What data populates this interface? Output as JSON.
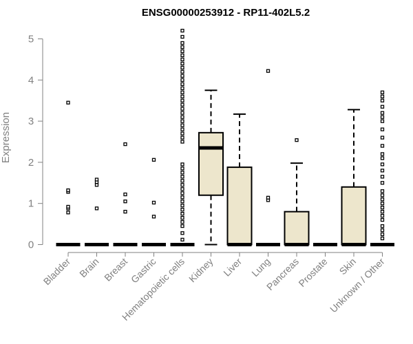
{
  "chart_data": {
    "type": "boxplot",
    "title": "ENSG00000253912 - RP11-402L5.2",
    "xlabel": "",
    "ylabel": "Expression",
    "ylim": [
      0,
      5.3
    ],
    "yticks": [
      0,
      1,
      2,
      3,
      4,
      5
    ],
    "grid": false,
    "box_fill": "#ede6cc",
    "categories": [
      "Bladder",
      "Brain",
      "Breast",
      "Gastric",
      "Hematopoietic cells",
      "Kidney",
      "Liver",
      "Lung",
      "Pancreas",
      "Prostate",
      "Skin",
      "Unknown / Other"
    ],
    "boxes": [
      {
        "q1": 0,
        "median": 0,
        "q3": 0,
        "whisker_low": 0,
        "whisker_high": 0,
        "outliers": [
          0.78,
          0.88,
          0.92,
          1.28,
          1.32,
          3.45
        ]
      },
      {
        "q1": 0,
        "median": 0,
        "q3": 0,
        "whisker_low": 0,
        "whisker_high": 0,
        "outliers": [
          0.88,
          1.45,
          1.52,
          1.58
        ]
      },
      {
        "q1": 0,
        "median": 0,
        "q3": 0,
        "whisker_low": 0,
        "whisker_high": 0,
        "outliers": [
          0.8,
          1.05,
          1.22,
          2.44
        ]
      },
      {
        "q1": 0,
        "median": 0,
        "q3": 0,
        "whisker_low": 0,
        "whisker_high": 0,
        "outliers": [
          0.68,
          1.02,
          2.06
        ]
      },
      {
        "q1": 0,
        "median": 0,
        "q3": 0,
        "whisker_low": 0,
        "whisker_high": 0,
        "outliers": [
          0.12,
          0.28,
          0.45,
          0.55,
          0.65,
          0.75,
          0.85,
          0.95,
          1.05,
          1.15,
          1.25,
          1.35,
          1.45,
          1.55,
          1.65,
          1.75,
          1.85,
          1.95,
          2.5,
          2.6,
          2.7,
          2.8,
          2.9,
          3.0,
          3.1,
          3.2,
          3.3,
          3.4,
          3.5,
          3.6,
          3.7,
          3.8,
          3.9,
          4.0,
          4.1,
          4.2,
          4.3,
          4.4,
          4.5,
          4.6,
          4.7,
          4.8,
          4.9,
          5.05,
          5.2
        ]
      },
      {
        "q1": 1.2,
        "median": 2.35,
        "q3": 2.72,
        "whisker_low": 0,
        "whisker_high": 3.75,
        "outliers": []
      },
      {
        "q1": 0,
        "median": 0,
        "q3": 1.88,
        "whisker_low": 0,
        "whisker_high": 3.17,
        "outliers": []
      },
      {
        "q1": 0,
        "median": 0,
        "q3": 0,
        "whisker_low": 0,
        "whisker_high": 0,
        "outliers": [
          1.08,
          1.14,
          4.22
        ]
      },
      {
        "q1": 0,
        "median": 0,
        "q3": 0.8,
        "whisker_low": 0,
        "whisker_high": 1.98,
        "outliers": [
          2.54
        ]
      },
      {
        "q1": 0,
        "median": 0,
        "q3": 0,
        "whisker_low": 0,
        "whisker_high": 0,
        "outliers": []
      },
      {
        "q1": 0,
        "median": 0,
        "q3": 1.4,
        "whisker_low": 0,
        "whisker_high": 3.28,
        "outliers": []
      },
      {
        "q1": 0,
        "median": 0,
        "q3": 0,
        "whisker_low": 0,
        "whisker_high": 0,
        "outliers": [
          0.15,
          0.25,
          0.35,
          0.45,
          0.6,
          0.7,
          0.8,
          0.9,
          1.0,
          1.1,
          1.2,
          1.3,
          1.5,
          1.65,
          1.8,
          1.95,
          2.1,
          2.2,
          2.4,
          2.6,
          2.8,
          3.0,
          3.1,
          3.2,
          3.35,
          3.5,
          3.6,
          3.7
        ]
      }
    ]
  }
}
